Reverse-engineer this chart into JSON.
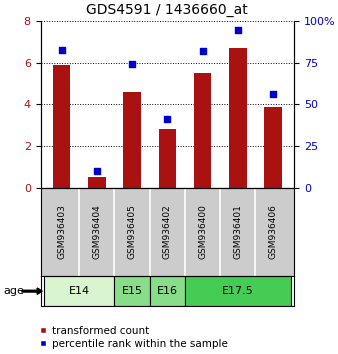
{
  "title": "GDS4591 / 1436660_at",
  "samples": [
    "GSM936403",
    "GSM936404",
    "GSM936405",
    "GSM936402",
    "GSM936400",
    "GSM936401",
    "GSM936406"
  ],
  "transformed_counts": [
    5.9,
    0.5,
    4.6,
    2.8,
    5.5,
    6.7,
    3.9
  ],
  "percentile_ranks": [
    83,
    10,
    74,
    41,
    82,
    95,
    56
  ],
  "age_groups": [
    {
      "label": "E14",
      "start": 0,
      "end": 1,
      "color": "#d4f0c8"
    },
    {
      "label": "E15",
      "start": 2,
      "end": 2,
      "color": "#88dd88"
    },
    {
      "label": "E16",
      "start": 3,
      "end": 3,
      "color": "#88dd88"
    },
    {
      "label": "E17.5",
      "start": 4,
      "end": 6,
      "color": "#44cc44"
    }
  ],
  "bar_color": "#aa1111",
  "scatter_color": "#0000cc",
  "ylim_left": [
    0,
    8
  ],
  "ylim_right": [
    0,
    100
  ],
  "yticks_left": [
    0,
    2,
    4,
    6,
    8
  ],
  "yticks_right": [
    0,
    25,
    50,
    75,
    100
  ],
  "yticklabels_right": [
    "0",
    "25",
    "50",
    "75",
    "100%"
  ],
  "age_label": "age",
  "legend_bar_label": "transformed count",
  "legend_scatter_label": "percentile rank within the sample",
  "bar_width": 0.5,
  "fig_width": 3.38,
  "fig_height": 3.54,
  "dpi": 100,
  "background_plot": "#ffffff",
  "background_sample": "#cccccc",
  "age14_color": "#d8f5d0",
  "age15_color": "#88dd88",
  "age16_color": "#88dd88",
  "age175_color": "#44cc55"
}
